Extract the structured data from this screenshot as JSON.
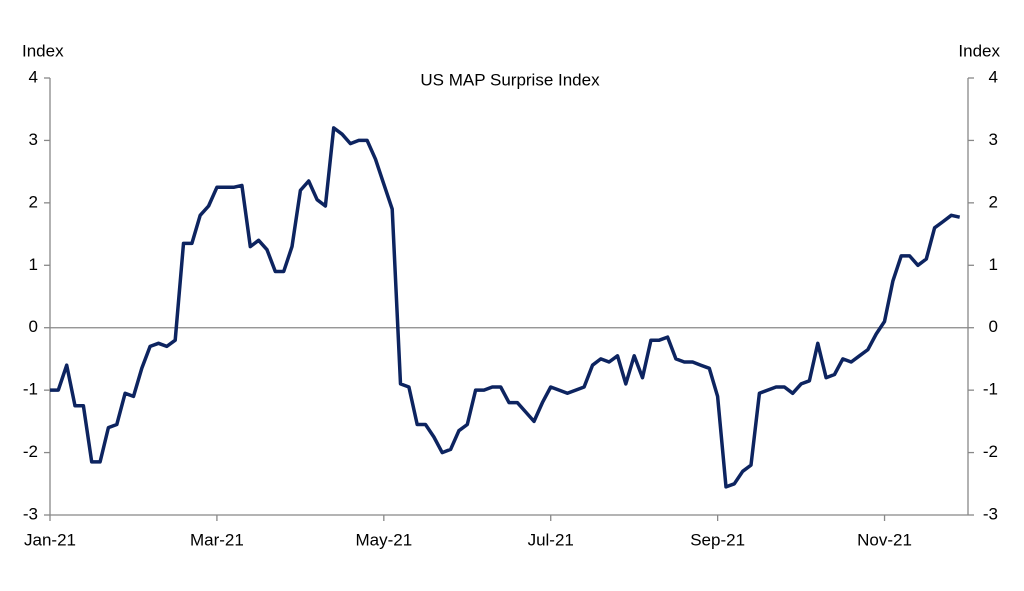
{
  "chart_data": {
    "type": "line",
    "title": "US MAP Surprise Index",
    "ylabel": "Index",
    "y2label": "Index",
    "categories": [
      "Jan-21",
      null,
      null,
      null,
      null,
      null,
      null,
      null,
      null,
      null,
      null,
      null,
      null,
      null,
      null,
      null,
      null,
      null,
      null,
      null,
      "Mar-21",
      null,
      null,
      null,
      null,
      null,
      null,
      null,
      null,
      null,
      null,
      null,
      null,
      null,
      null,
      null,
      null,
      null,
      null,
      null,
      "May-21",
      null,
      null,
      null,
      null,
      null,
      null,
      null,
      null,
      null,
      null,
      null,
      null,
      null,
      null,
      null,
      null,
      null,
      null,
      null,
      "Jul-21",
      null,
      null,
      null,
      null,
      null,
      null,
      null,
      null,
      null,
      null,
      null,
      null,
      null,
      null,
      null,
      null,
      null,
      null,
      null,
      "Sep-21",
      null,
      null,
      null,
      null,
      null,
      null,
      null,
      null,
      null,
      null,
      null,
      null,
      null,
      null,
      null,
      null,
      null,
      null,
      null,
      "Nov-21",
      null,
      null,
      null,
      null,
      null,
      null,
      null,
      null,
      null
    ],
    "series": [
      {
        "name": "US MAP Surprise Index",
        "color": "#0d2460",
        "values": [
          -1.0,
          -1.0,
          -0.6,
          -1.25,
          -1.25,
          -2.15,
          -2.15,
          -1.6,
          -1.55,
          -1.05,
          -1.1,
          -0.65,
          -0.3,
          -0.25,
          -0.3,
          -0.2,
          1.35,
          1.35,
          1.8,
          1.95,
          2.25,
          2.25,
          2.25,
          2.28,
          1.3,
          1.4,
          1.25,
          0.9,
          0.9,
          1.3,
          2.2,
          2.35,
          2.05,
          1.95,
          3.2,
          3.1,
          2.95,
          3.0,
          3.0,
          2.7,
          2.3,
          1.9,
          -0.9,
          -0.95,
          -1.55,
          -1.55,
          -1.75,
          -2.0,
          -1.95,
          -1.65,
          -1.55,
          -1.0,
          -1.0,
          -0.95,
          -0.95,
          -1.2,
          -1.2,
          -1.35,
          -1.5,
          -1.2,
          -0.95,
          -1.0,
          -1.05,
          -1.0,
          -0.95,
          -0.6,
          -0.5,
          -0.55,
          -0.45,
          -0.9,
          -0.45,
          -0.8,
          -0.2,
          -0.2,
          -0.15,
          -0.5,
          -0.55,
          -0.55,
          -0.6,
          -0.65,
          -1.1,
          -2.55,
          -2.5,
          -2.3,
          -2.2,
          -1.05,
          -1.0,
          -0.95,
          -0.95,
          -1.05,
          -0.9,
          -0.85,
          -0.25,
          -0.8,
          -0.75,
          -0.5,
          -0.55,
          -0.45,
          -0.35,
          -0.1,
          0.1,
          0.75,
          1.15,
          1.15,
          1.0,
          1.1,
          1.6,
          1.7,
          1.8,
          1.77
        ]
      }
    ],
    "ylim": [
      -3,
      4
    ],
    "yticks": [
      -3,
      -2,
      -1,
      0,
      1,
      2,
      3,
      4
    ],
    "y2lim": [
      -3,
      4
    ],
    "y2ticks": [
      -3,
      -2,
      -1,
      0,
      1,
      2,
      3,
      4
    ],
    "zero_line": true
  }
}
